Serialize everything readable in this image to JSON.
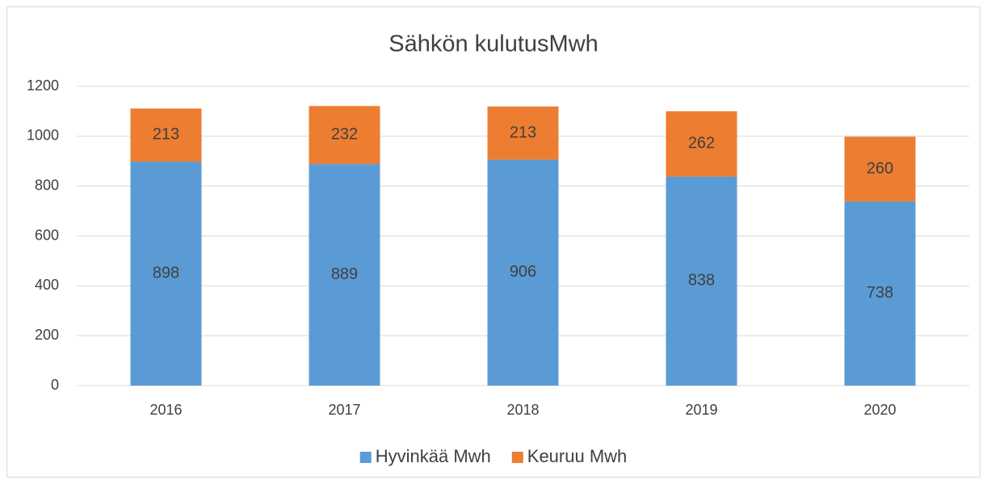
{
  "chart_data": {
    "type": "bar",
    "stacked": true,
    "title": "Sähkön kulutusMwh",
    "categories": [
      "2016",
      "2017",
      "2018",
      "2019",
      "2020"
    ],
    "series": [
      {
        "name": "Hyvinkää Mwh",
        "color": "#5b9bd5",
        "values": [
          898,
          889,
          906,
          838,
          738
        ]
      },
      {
        "name": "Keuruu Mwh",
        "color": "#ed7d31",
        "values": [
          213,
          232,
          213,
          262,
          260
        ]
      }
    ],
    "ylim": [
      0,
      1200
    ],
    "yticks": [
      0,
      200,
      400,
      600,
      800,
      1000,
      1200
    ],
    "grid": true,
    "legend": "bottom",
    "data_labels": true
  }
}
